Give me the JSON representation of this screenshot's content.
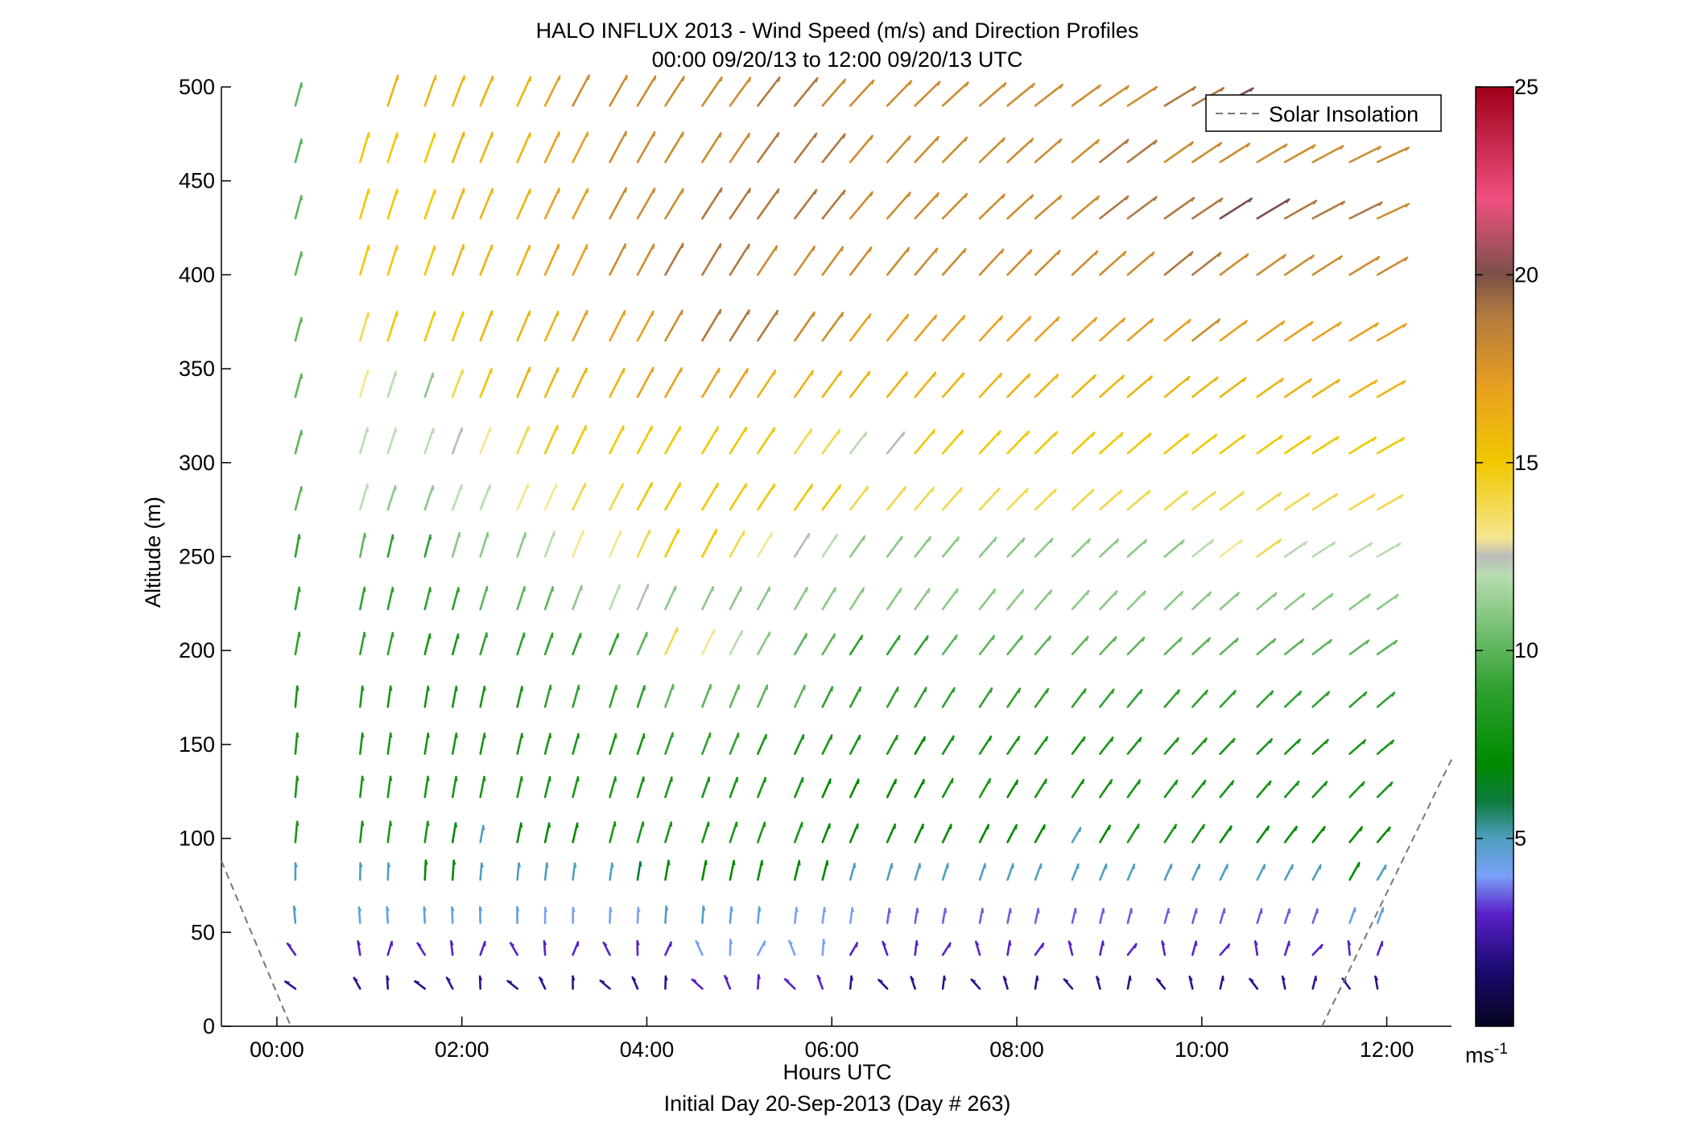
{
  "chart_data": {
    "type": "quiver",
    "title": "HALO INFLUX 2013 - Wind Speed (m/s) and Direction Profiles",
    "subtitle": "00:00 09/20/13 to 12:00 09/20/13  UTC",
    "xlabel": "Hours UTC",
    "xlabel2": "Initial Day 20-Sep-2013 (Day # 263)",
    "ylabel": "Altitude (m)",
    "xlim": [
      -0.6,
      12.7
    ],
    "ylim": [
      0,
      500
    ],
    "xticks": [
      0,
      2,
      4,
      6,
      8,
      10,
      12
    ],
    "xtick_labels": [
      "00:00",
      "02:00",
      "04:00",
      "06:00",
      "08:00",
      "10:00",
      "12:00"
    ],
    "yticks": [
      0,
      50,
      100,
      150,
      200,
      250,
      300,
      350,
      400,
      450,
      500
    ],
    "ytick_labels": [
      "0",
      "50",
      "100",
      "150",
      "200",
      "250",
      "300",
      "350",
      "400",
      "450",
      "500"
    ],
    "grid": false,
    "legend": {
      "label": "Solar Insolation",
      "position": "top-right",
      "style": "dashed",
      "color": "#777777"
    },
    "colorbar": {
      "min": 0,
      "max": 25,
      "ticks": [
        5,
        10,
        15,
        20,
        25
      ],
      "tick_labels": [
        "5",
        "10",
        "15",
        "20",
        "25"
      ],
      "unit_base": "ms",
      "unit_exp": "-1",
      "stops": [
        [
          0,
          "#050520"
        ],
        [
          1.5,
          "#1a0a70"
        ],
        [
          3,
          "#5a20c8"
        ],
        [
          4,
          "#7aa0f8"
        ],
        [
          5,
          "#4f9fc0"
        ],
        [
          6,
          "#0c7a3a"
        ],
        [
          7,
          "#008a00"
        ],
        [
          9,
          "#2fa030"
        ],
        [
          12,
          "#b8dcb0"
        ],
        [
          12.5,
          "#bbbbbb"
        ],
        [
          13,
          "#f4e690"
        ],
        [
          15,
          "#f0c800"
        ],
        [
          17,
          "#e8a020"
        ],
        [
          19,
          "#b07840"
        ],
        [
          20,
          "#7a5048"
        ],
        [
          22,
          "#f05080"
        ],
        [
          25,
          "#a00018"
        ]
      ]
    },
    "times": [
      0.2,
      0.9,
      1.2,
      1.6,
      1.9,
      2.2,
      2.6,
      2.9,
      3.2,
      3.6,
      3.9,
      4.2,
      4.6,
      4.9,
      5.2,
      5.6,
      5.9,
      6.2,
      6.6,
      6.9,
      7.2,
      7.6,
      7.9,
      8.2,
      8.6,
      8.9,
      9.2,
      9.6,
      9.9,
      10.2,
      10.6,
      10.9,
      11.2,
      11.6,
      11.9
    ],
    "altitudes": [
      20,
      40,
      60,
      80,
      100,
      120,
      140,
      160,
      180,
      200,
      220,
      240,
      260,
      280,
      300,
      320,
      340,
      360,
      380,
      400,
      420,
      440,
      460,
      480,
      500
    ],
    "profiles": [
      {
        "alt": 490,
        "dir_deg": 195,
        "speed": [
          10,
          null,
          16,
          16,
          16,
          16,
          16,
          17,
          18,
          18,
          18,
          18,
          18,
          18,
          19,
          19,
          18,
          18,
          18,
          18,
          18,
          18,
          18,
          18,
          18,
          18,
          18,
          19,
          19,
          20,
          null,
          null,
          null,
          null,
          null
        ],
        "dir_start": 195,
        "dir_end": 250
      },
      {
        "alt": 460,
        "speed": [
          10,
          15,
          15,
          15,
          16,
          16,
          16,
          17,
          17,
          18,
          18,
          18,
          18,
          18,
          19,
          19,
          19,
          18,
          18,
          18,
          18,
          18,
          18,
          18,
          18,
          19,
          19,
          18,
          18,
          18,
          18,
          18,
          18,
          18,
          18
        ],
        "dir_start": 195,
        "dir_end": 245
      },
      {
        "alt": 430,
        "speed": [
          10,
          15,
          15,
          15,
          16,
          16,
          16,
          17,
          17,
          18,
          18,
          18,
          19,
          19,
          19,
          19,
          19,
          18,
          18,
          18,
          18,
          18,
          18,
          18,
          18,
          19,
          19,
          19,
          19,
          20,
          20,
          19,
          19,
          19,
          18
        ],
        "dir_start": 195,
        "dir_end": 245
      },
      {
        "alt": 400,
        "speed": [
          10,
          15,
          15,
          15,
          16,
          16,
          16,
          17,
          17,
          18,
          18,
          19,
          19,
          19,
          18,
          18,
          18,
          18,
          18,
          18,
          18,
          18,
          18,
          18,
          18,
          18,
          18,
          19,
          19,
          18,
          18,
          18,
          18,
          18,
          18
        ],
        "dir_start": 195,
        "dir_end": 240
      },
      {
        "alt": 365,
        "speed": [
          10,
          14,
          15,
          15,
          15,
          16,
          16,
          16,
          17,
          17,
          17,
          18,
          19,
          19,
          19,
          18,
          18,
          17,
          17,
          17,
          17,
          17,
          17,
          17,
          17,
          17,
          17,
          17,
          18,
          17,
          17,
          17,
          17,
          17,
          17
        ],
        "dir_start": 195,
        "dir_end": 240
      },
      {
        "alt": 335,
        "speed": [
          10,
          13,
          12,
          11,
          14,
          15,
          16,
          16,
          16,
          16,
          17,
          17,
          17,
          17,
          16,
          16,
          16,
          16,
          16,
          16,
          16,
          16,
          16,
          16,
          16,
          16,
          16,
          16,
          16,
          16,
          16,
          16,
          16,
          16,
          16
        ],
        "dir_start": 195,
        "dir_end": 240
      },
      {
        "alt": 305,
        "speed": [
          10,
          12,
          12,
          12,
          12.5,
          13,
          14,
          15,
          15,
          15,
          15,
          15,
          15,
          15,
          15,
          14,
          14,
          12,
          12.5,
          15,
          15,
          15,
          15,
          15,
          15,
          15,
          15,
          15,
          15,
          15,
          15,
          15,
          15,
          15,
          15
        ],
        "dir_start": 195,
        "dir_end": 240
      },
      {
        "alt": 275,
        "speed": [
          10,
          12,
          11,
          11,
          12,
          12,
          13,
          13,
          14,
          14,
          15,
          15,
          15,
          15,
          15,
          15,
          15,
          14,
          14,
          14,
          14,
          14,
          14,
          14,
          14,
          14,
          14,
          14,
          14,
          14,
          14,
          14,
          14,
          14,
          14
        ],
        "dir_start": 195,
        "dir_end": 240
      },
      {
        "alt": 250,
        "speed": [
          9,
          10,
          9,
          9,
          11,
          11,
          11,
          12,
          13,
          13,
          14,
          15,
          15,
          14,
          13,
          12.5,
          12,
          11,
          11,
          11,
          11,
          11,
          11,
          11,
          11,
          11,
          11,
          11,
          12,
          13,
          14,
          12,
          12,
          12,
          12
        ],
        "dir_start": 190,
        "dir_end": 240
      },
      {
        "alt": 222,
        "speed": [
          9,
          9,
          9,
          9,
          9,
          10,
          10,
          10,
          11,
          12,
          12.5,
          11,
          11,
          11,
          11,
          11,
          11,
          11,
          11,
          11,
          11,
          11,
          11,
          11,
          11,
          11,
          11,
          11,
          11,
          11,
          11,
          11,
          11,
          11,
          11
        ],
        "dir_start": 190,
        "dir_end": 235
      },
      {
        "alt": 198,
        "speed": [
          9,
          9,
          9,
          8,
          8,
          9,
          9,
          9,
          9,
          9,
          10,
          14,
          13,
          12,
          11,
          10,
          10,
          9,
          9,
          9,
          10,
          10,
          10,
          10,
          10,
          10,
          10,
          10,
          10,
          10,
          10,
          10,
          10,
          10,
          10
        ],
        "dir_start": 190,
        "dir_end": 235
      },
      {
        "alt": 170,
        "speed": [
          8,
          8,
          8,
          8,
          8,
          8,
          8,
          9,
          9,
          9,
          9,
          10,
          10,
          10,
          10,
          10,
          9,
          9,
          9,
          9,
          9,
          9,
          9,
          9,
          9,
          9,
          9,
          9,
          9,
          9,
          9,
          9,
          9,
          9,
          9
        ],
        "dir_start": 185,
        "dir_end": 230
      },
      {
        "alt": 145,
        "speed": [
          8,
          8,
          8,
          8,
          8,
          8,
          8,
          8,
          8,
          8,
          8,
          9,
          9,
          9,
          8,
          8,
          8,
          8,
          8,
          7,
          8,
          8,
          8,
          8,
          8,
          8,
          8,
          8,
          8,
          8,
          8,
          8,
          8,
          8,
          8
        ],
        "dir_start": 185,
        "dir_end": 230
      },
      {
        "alt": 122,
        "speed": [
          8,
          8,
          8,
          8,
          8,
          8,
          8,
          8,
          8,
          8,
          8,
          8,
          8,
          8,
          8,
          8,
          7,
          7,
          7,
          7,
          8,
          8,
          7,
          8,
          8,
          8,
          8,
          8,
          8,
          8,
          8,
          8,
          8,
          8,
          8
        ],
        "dir_start": 185,
        "dir_end": 225
      },
      {
        "alt": 98,
        "speed": [
          8,
          8,
          8,
          8,
          7,
          5,
          7,
          7,
          7,
          8,
          8,
          8,
          8,
          8,
          8,
          8,
          7,
          7,
          7,
          7,
          7,
          7,
          7,
          7,
          5,
          7,
          8,
          8,
          8,
          7,
          7,
          7,
          7,
          7,
          7
        ],
        "dir_start": 185,
        "dir_end": 220
      },
      {
        "alt": 78,
        "speed": [
          5,
          5,
          5,
          7,
          7,
          5,
          5,
          5,
          5,
          5,
          6,
          7,
          7,
          7,
          7,
          7,
          7,
          5,
          5,
          5,
          5,
          5,
          5,
          5,
          5,
          5,
          5,
          5,
          5,
          5,
          5,
          5,
          5,
          7,
          5
        ],
        "dir_start": 180,
        "dir_end": 210
      },
      {
        "alt": 55,
        "speed": [
          5,
          4.5,
          4.5,
          4.5,
          4.5,
          4.5,
          4.5,
          4,
          4,
          4,
          4,
          5,
          5,
          4.5,
          4.5,
          4,
          4,
          4,
          3.5,
          3.5,
          3.5,
          3.5,
          3.5,
          3.5,
          3.5,
          3.5,
          3.5,
          3.5,
          3.5,
          3.5,
          3.5,
          3.5,
          3.5,
          4.5,
          4.5
        ],
        "dir_start": 175,
        "dir_end": 200
      },
      {
        "alt": 38,
        "speed": [
          3,
          3,
          3,
          3,
          3,
          3,
          3,
          3,
          3,
          3,
          3,
          3,
          4,
          4,
          4,
          4,
          4,
          3,
          3,
          3,
          3,
          3,
          3,
          3,
          3,
          3,
          3,
          3,
          3,
          3,
          3,
          3,
          3,
          3,
          3
        ],
        "dir_start": 170,
        "dir_end": 200
      },
      {
        "alt": 20,
        "speed": [
          2,
          2,
          2,
          2,
          2,
          2,
          2,
          2,
          2,
          2,
          2,
          2,
          3,
          3,
          3,
          3,
          3,
          2,
          2,
          2,
          2,
          2,
          2,
          2,
          2,
          2,
          2,
          2,
          2,
          2,
          2,
          2,
          2,
          2,
          2
        ],
        "dir_start": 150,
        "dir_end": 170
      }
    ],
    "solar_insolation": [
      {
        "x": [
          -0.6,
          0.15
        ],
        "y": [
          88,
          0
        ]
      },
      {
        "x": [
          11.3,
          12.7
        ],
        "y": [
          0,
          142
        ]
      }
    ]
  }
}
